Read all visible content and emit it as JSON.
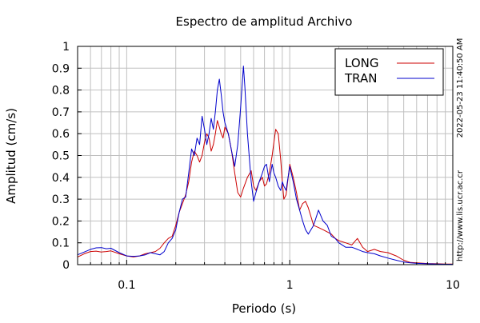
{
  "chart_data": {
    "type": "line",
    "title": "Espectro de amplitud Archivo",
    "xlabel": "Periodo (s)",
    "ylabel": "Amplitud (cm/s)",
    "x_scale": "log",
    "xlim": [
      0.05,
      10
    ],
    "ylim": [
      0,
      1
    ],
    "x_ticks": [
      {
        "value": 0.1,
        "label": "0.1"
      },
      {
        "value": 1,
        "label": "1"
      },
      {
        "value": 10,
        "label": "10"
      }
    ],
    "y_ticks": [
      {
        "value": 0,
        "label": "0"
      },
      {
        "value": 0.1,
        "label": "0.1"
      },
      {
        "value": 0.2,
        "label": "0.2"
      },
      {
        "value": 0.3,
        "label": "0.3"
      },
      {
        "value": 0.4,
        "label": "0.4"
      },
      {
        "value": 0.5,
        "label": "0.5"
      },
      {
        "value": 0.6,
        "label": "0.6"
      },
      {
        "value": 0.7,
        "label": "0.7"
      },
      {
        "value": 0.8,
        "label": "0.8"
      },
      {
        "value": 0.9,
        "label": "0.9"
      },
      {
        "value": 1,
        "label": "1"
      }
    ],
    "grid": true,
    "legend_position": "top-right",
    "series": [
      {
        "name": "LONG",
        "color": "#cc0000",
        "x": [
          0.05,
          0.055,
          0.06,
          0.065,
          0.07,
          0.075,
          0.08,
          0.09,
          0.1,
          0.11,
          0.12,
          0.13,
          0.14,
          0.15,
          0.16,
          0.17,
          0.18,
          0.19,
          0.2,
          0.21,
          0.22,
          0.23,
          0.24,
          0.25,
          0.26,
          0.27,
          0.28,
          0.29,
          0.3,
          0.31,
          0.32,
          0.33,
          0.34,
          0.35,
          0.36,
          0.37,
          0.38,
          0.39,
          0.4,
          0.42,
          0.44,
          0.46,
          0.48,
          0.5,
          0.52,
          0.55,
          0.58,
          0.6,
          0.62,
          0.65,
          0.68,
          0.7,
          0.72,
          0.75,
          0.78,
          0.8,
          0.82,
          0.85,
          0.88,
          0.9,
          0.92,
          0.95,
          1.0,
          1.05,
          1.1,
          1.15,
          1.2,
          1.25,
          1.3,
          1.4,
          1.5,
          1.6,
          1.7,
          1.8,
          1.9,
          2.0,
          2.2,
          2.4,
          2.6,
          2.8,
          3.0,
          3.3,
          3.6,
          4.0,
          4.5,
          5.0,
          5.5,
          6.0,
          7.0,
          8.0,
          9.0,
          10.0
        ],
        "y": [
          0.035,
          0.05,
          0.06,
          0.062,
          0.058,
          0.06,
          0.063,
          0.05,
          0.04,
          0.035,
          0.04,
          0.05,
          0.055,
          0.06,
          0.075,
          0.1,
          0.12,
          0.13,
          0.18,
          0.24,
          0.28,
          0.32,
          0.38,
          0.47,
          0.52,
          0.5,
          0.47,
          0.5,
          0.56,
          0.6,
          0.58,
          0.52,
          0.55,
          0.6,
          0.66,
          0.63,
          0.6,
          0.58,
          0.63,
          0.6,
          0.52,
          0.42,
          0.33,
          0.31,
          0.35,
          0.4,
          0.43,
          0.36,
          0.34,
          0.38,
          0.4,
          0.36,
          0.37,
          0.42,
          0.5,
          0.56,
          0.62,
          0.6,
          0.48,
          0.38,
          0.3,
          0.32,
          0.46,
          0.4,
          0.33,
          0.25,
          0.28,
          0.29,
          0.26,
          0.18,
          0.17,
          0.16,
          0.15,
          0.14,
          0.12,
          0.11,
          0.1,
          0.09,
          0.12,
          0.08,
          0.06,
          0.07,
          0.06,
          0.055,
          0.04,
          0.02,
          0.01,
          0.008,
          0.005,
          0.004,
          0.003,
          0.003
        ]
      },
      {
        "name": "TRAN",
        "color": "#0000cc",
        "x": [
          0.05,
          0.055,
          0.06,
          0.065,
          0.07,
          0.075,
          0.08,
          0.09,
          0.1,
          0.11,
          0.12,
          0.13,
          0.14,
          0.15,
          0.16,
          0.17,
          0.18,
          0.19,
          0.2,
          0.21,
          0.22,
          0.23,
          0.24,
          0.25,
          0.26,
          0.27,
          0.28,
          0.29,
          0.3,
          0.31,
          0.32,
          0.33,
          0.34,
          0.35,
          0.36,
          0.37,
          0.38,
          0.39,
          0.4,
          0.42,
          0.44,
          0.46,
          0.48,
          0.5,
          0.52,
          0.53,
          0.55,
          0.58,
          0.6,
          0.62,
          0.65,
          0.68,
          0.7,
          0.72,
          0.75,
          0.78,
          0.8,
          0.82,
          0.85,
          0.88,
          0.9,
          0.92,
          0.95,
          1.0,
          1.05,
          1.1,
          1.15,
          1.2,
          1.25,
          1.3,
          1.4,
          1.5,
          1.6,
          1.7,
          1.8,
          1.9,
          2.0,
          2.2,
          2.4,
          2.6,
          2.8,
          3.0,
          3.3,
          3.6,
          4.0,
          4.5,
          5.0,
          5.5,
          6.0,
          7.0,
          8.0,
          9.0,
          10.0
        ],
        "y": [
          0.045,
          0.058,
          0.07,
          0.077,
          0.078,
          0.073,
          0.075,
          0.055,
          0.04,
          0.038,
          0.04,
          0.045,
          0.055,
          0.05,
          0.045,
          0.06,
          0.1,
          0.12,
          0.16,
          0.24,
          0.3,
          0.31,
          0.42,
          0.53,
          0.5,
          0.58,
          0.55,
          0.68,
          0.62,
          0.55,
          0.6,
          0.67,
          0.62,
          0.7,
          0.8,
          0.85,
          0.78,
          0.7,
          0.65,
          0.6,
          0.52,
          0.45,
          0.55,
          0.72,
          0.91,
          0.82,
          0.6,
          0.38,
          0.29,
          0.33,
          0.38,
          0.42,
          0.45,
          0.46,
          0.38,
          0.46,
          0.42,
          0.4,
          0.36,
          0.34,
          0.38,
          0.36,
          0.34,
          0.45,
          0.38,
          0.3,
          0.25,
          0.2,
          0.16,
          0.14,
          0.18,
          0.25,
          0.2,
          0.18,
          0.13,
          0.12,
          0.1,
          0.08,
          0.08,
          0.07,
          0.06,
          0.055,
          0.05,
          0.04,
          0.03,
          0.02,
          0.012,
          0.008,
          0.006,
          0.004,
          0.003,
          0.002,
          0.002
        ]
      }
    ]
  },
  "side_annotations": {
    "timestamp": "2022-05-23 11:40:50 AM",
    "url": "http://www.lis.ucr.ac.cr"
  }
}
